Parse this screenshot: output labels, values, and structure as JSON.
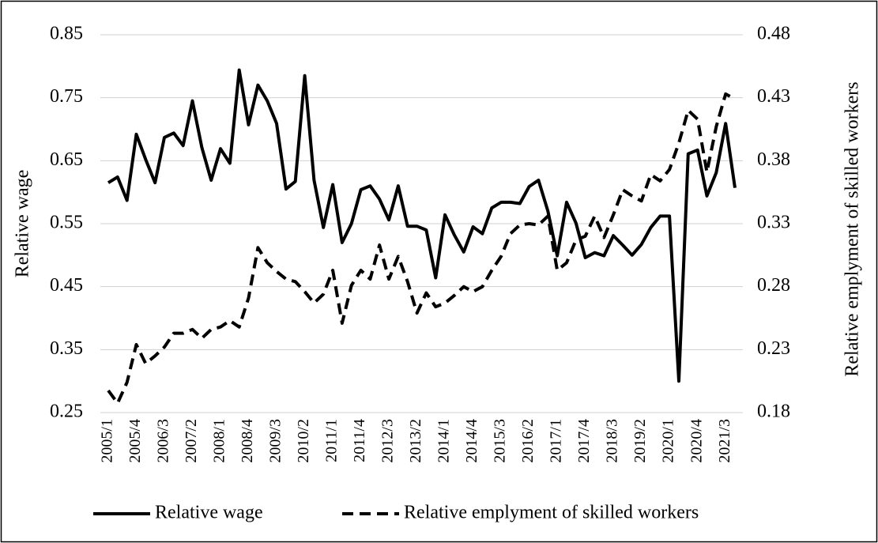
{
  "chart_data": {
    "type": "line",
    "categories": [
      "2005/1",
      null,
      null,
      "2005/4",
      null,
      null,
      "2006/3",
      null,
      null,
      "2007/2",
      null,
      null,
      "2008/1",
      null,
      null,
      "2008/4",
      null,
      null,
      "2009/3",
      null,
      null,
      "2010/2",
      null,
      null,
      "2011/1",
      null,
      null,
      "2011/4",
      null,
      null,
      "2012/3",
      null,
      null,
      "2013/2",
      null,
      null,
      "2014/1",
      null,
      null,
      "2014/4",
      null,
      null,
      "2015/3",
      null,
      null,
      "2016/2",
      null,
      null,
      "2017/1",
      null,
      null,
      "2017/4",
      null,
      null,
      "2018/3",
      null,
      null,
      "2019/2",
      null,
      null,
      "2020/1",
      null,
      null,
      "2020/4",
      null,
      null,
      "2021/3",
      null
    ],
    "y_label": "Relative wage",
    "y2_label": "Relative emplyment of skilled workers",
    "ylim": [
      0.25,
      0.85
    ],
    "yticks": [
      0.25,
      0.35,
      0.45,
      0.55,
      0.65,
      0.75,
      0.85
    ],
    "y2lim": [
      0.18,
      0.48
    ],
    "y2ticks": [
      0.18,
      0.23,
      0.28,
      0.33,
      0.38,
      0.43,
      0.48
    ],
    "grid": true,
    "legend": "bottom",
    "series": [
      {
        "name": "Relative wage",
        "color": "#000000",
        "dash": false,
        "values": [
          0.615,
          0.624,
          0.587,
          0.692,
          0.652,
          0.615,
          0.687,
          0.694,
          0.674,
          0.745,
          0.671,
          0.619,
          0.669,
          0.646,
          0.794,
          0.707,
          0.77,
          0.745,
          0.709,
          0.605,
          0.617,
          0.785,
          0.619,
          0.544,
          0.612,
          0.52,
          0.55,
          0.604,
          0.61,
          0.589,
          0.556,
          0.61,
          0.546,
          0.546,
          0.54,
          0.464,
          0.564,
          0.532,
          0.505,
          0.545,
          0.534,
          0.575,
          0.584,
          0.584,
          0.582,
          0.609,
          0.619,
          0.57,
          0.499,
          0.584,
          0.551,
          0.496,
          0.504,
          0.499,
          0.531,
          0.516,
          0.5,
          0.517,
          0.544,
          0.562,
          0.562,
          0.3,
          0.661,
          0.667,
          0.594,
          0.631,
          0.709,
          0.607
        ]
      },
      {
        "name": "Relative emplyment of skilled workers",
        "color": "#000000",
        "dash": true,
        "axis": "y2",
        "values": [
          0.1975,
          0.1875,
          0.204,
          0.234,
          0.219,
          0.225,
          0.232,
          0.243,
          0.243,
          0.246,
          0.239,
          0.246,
          0.248,
          0.253,
          0.248,
          0.271,
          0.311,
          0.299,
          0.292,
          0.286,
          0.284,
          0.276,
          0.267,
          0.274,
          0.293,
          0.251,
          0.281,
          0.293,
          0.286,
          0.313,
          0.286,
          0.304,
          0.284,
          0.259,
          0.275,
          0.264,
          0.267,
          0.273,
          0.28,
          0.276,
          0.28,
          0.293,
          0.304,
          0.322,
          0.329,
          0.33,
          0.329,
          0.336,
          0.293,
          0.299,
          0.317,
          0.32,
          0.336,
          0.319,
          0.337,
          0.357,
          0.352,
          0.348,
          0.369,
          0.364,
          0.373,
          0.394,
          0.42,
          0.413,
          0.371,
          0.407,
          0.433,
          0.429
        ]
      }
    ]
  }
}
